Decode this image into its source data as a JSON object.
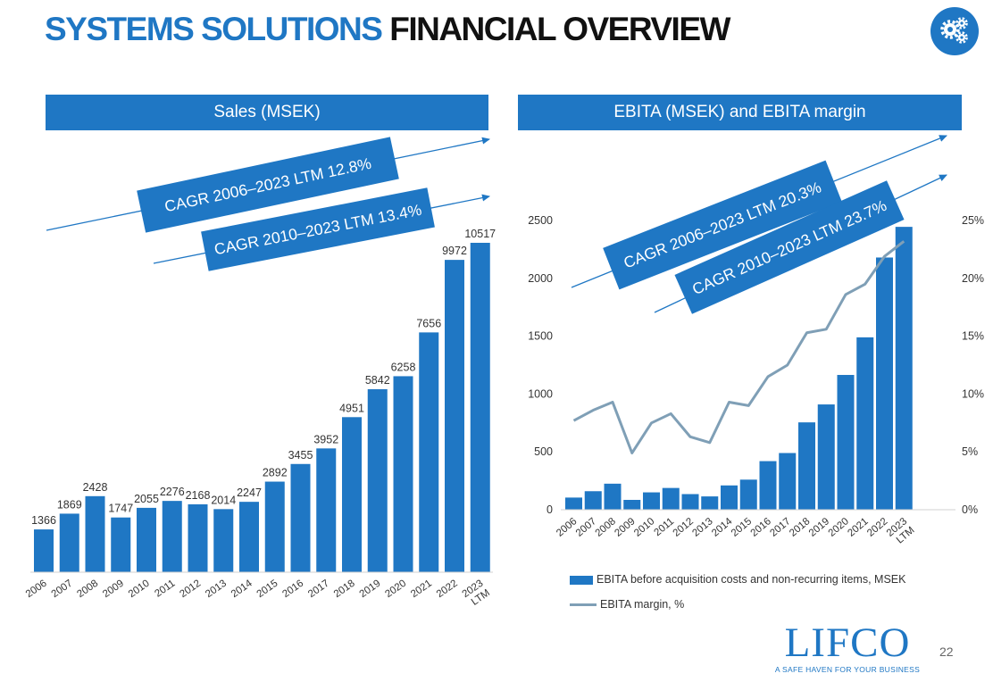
{
  "slide": {
    "title_part1": "SYSTEMS SOLUTIONS",
    "title_part2": "FINANCIAL OVERVIEW",
    "page_number": "22",
    "logo_text": "LIFCO",
    "logo_tagline": "A SAFE HAVEN FOR YOUR BUSINESS",
    "icon": "gears-icon",
    "accent_color": "#1f77c4"
  },
  "chart_data": [
    {
      "type": "bar",
      "title": "Sales (MSEK)",
      "categories": [
        "2006",
        "2007",
        "2008",
        "2009",
        "2010",
        "2011",
        "2012",
        "2013",
        "2014",
        "2015",
        "2016",
        "2017",
        "2018",
        "2019",
        "2020",
        "2021",
        "2022",
        "2023 LTM"
      ],
      "values": [
        1366,
        1869,
        2428,
        1747,
        2055,
        2276,
        2168,
        2014,
        2247,
        2892,
        3455,
        3952,
        4951,
        5842,
        6258,
        7656,
        9972,
        10517
      ],
      "data_labels": true,
      "ylim": [
        0,
        11000
      ],
      "axis_visible": false,
      "grid": false,
      "bar_color": "#1f77c4",
      "annotations": [
        "CAGR 2006–2023 LTM 12.8%",
        "CAGR 2010–2023 LTM 13.4%"
      ]
    },
    {
      "type": "bar+line",
      "title": "EBITA (MSEK) and EBITA margin",
      "categories": [
        "2006",
        "2007",
        "2008",
        "2009",
        "2010",
        "2011",
        "2012",
        "2013",
        "2014",
        "2015",
        "2016",
        "2017",
        "2018",
        "2019",
        "2020",
        "2021",
        "2022",
        "2023 LTM"
      ],
      "series": [
        {
          "name": "EBITA before acquisition costs and non-recurring items, MSEK",
          "type": "bar",
          "axis": "left",
          "values": [
            105,
            160,
            225,
            85,
            150,
            188,
            135,
            115,
            210,
            260,
            420,
            490,
            755,
            910,
            1165,
            1490,
            2180,
            2445
          ]
        },
        {
          "name": "EBITA margin, %",
          "type": "line",
          "axis": "right",
          "values": [
            7.7,
            8.6,
            9.3,
            4.9,
            7.5,
            8.3,
            6.3,
            5.8,
            9.3,
            9.0,
            11.5,
            12.5,
            15.3,
            15.6,
            18.6,
            19.5,
            21.9,
            23.2
          ]
        }
      ],
      "y_left": {
        "min": 0,
        "max": 2500,
        "ticks": [
          "0",
          "500",
          "1000",
          "1500",
          "2000",
          "2500"
        ]
      },
      "y_right": {
        "min": 0,
        "max": 25,
        "ticks": [
          "0%",
          "5%",
          "10%",
          "15%",
          "20%",
          "25%"
        ]
      },
      "grid": false,
      "legend_position": "bottom",
      "bar_color": "#1f77c4",
      "line_color": "#7f9fb6",
      "annotations": [
        "CAGR 2006–2023 LTM 20.3%",
        "CAGR 2010–2023 LTM 23.7%"
      ]
    }
  ]
}
